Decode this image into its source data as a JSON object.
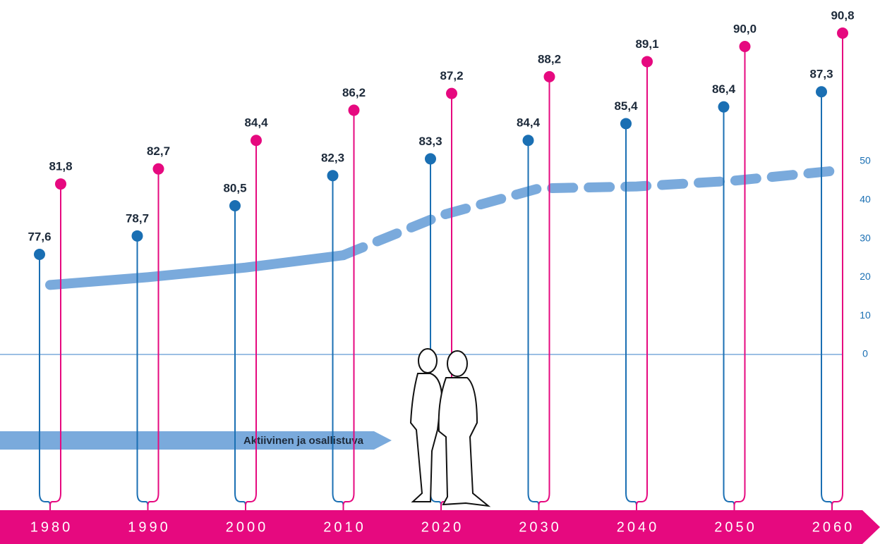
{
  "chart_data": {
    "type": "lollipop",
    "categories": [
      "1980",
      "1990",
      "2000",
      "2010",
      "2020",
      "2030",
      "2040",
      "2050",
      "2060"
    ],
    "series": [
      {
        "color": "#1a6fb3",
        "values": [
          77.6,
          78.7,
          80.5,
          82.3,
          83.3,
          84.4,
          85.4,
          86.4,
          87.3
        ],
        "value_labels": [
          "77,6",
          "78,7",
          "80,5",
          "82,3",
          "83,3",
          "84,4",
          "85,4",
          "86,4",
          "87,3"
        ]
      },
      {
        "color": "#e6097f",
        "values": [
          81.8,
          82.7,
          84.4,
          86.2,
          87.2,
          88.2,
          89.1,
          90.0,
          90.8
        ],
        "value_labels": [
          "81,8",
          "82,7",
          "84,4",
          "86,2",
          "87,2",
          "88,2",
          "89,1",
          "90,0",
          "90,8"
        ]
      },
      {
        "type": "line",
        "axis": "y2",
        "color": "#7aaadc",
        "values": [
          18,
          20,
          22.5,
          25.7,
          null,
          null,
          null,
          null,
          null
        ]
      },
      {
        "type": "line",
        "axis": "y2",
        "color": "#7aaadc",
        "dashed": true,
        "values": [
          null,
          null,
          null,
          25.7,
          36,
          43,
          43.5,
          45,
          47.5
        ]
      }
    ],
    "y2lim": [
      0,
      50
    ],
    "y2ticks": [
      0,
      10,
      20,
      30,
      40,
      50
    ],
    "annotation": "Aktiivinen ja osallistuva"
  }
}
